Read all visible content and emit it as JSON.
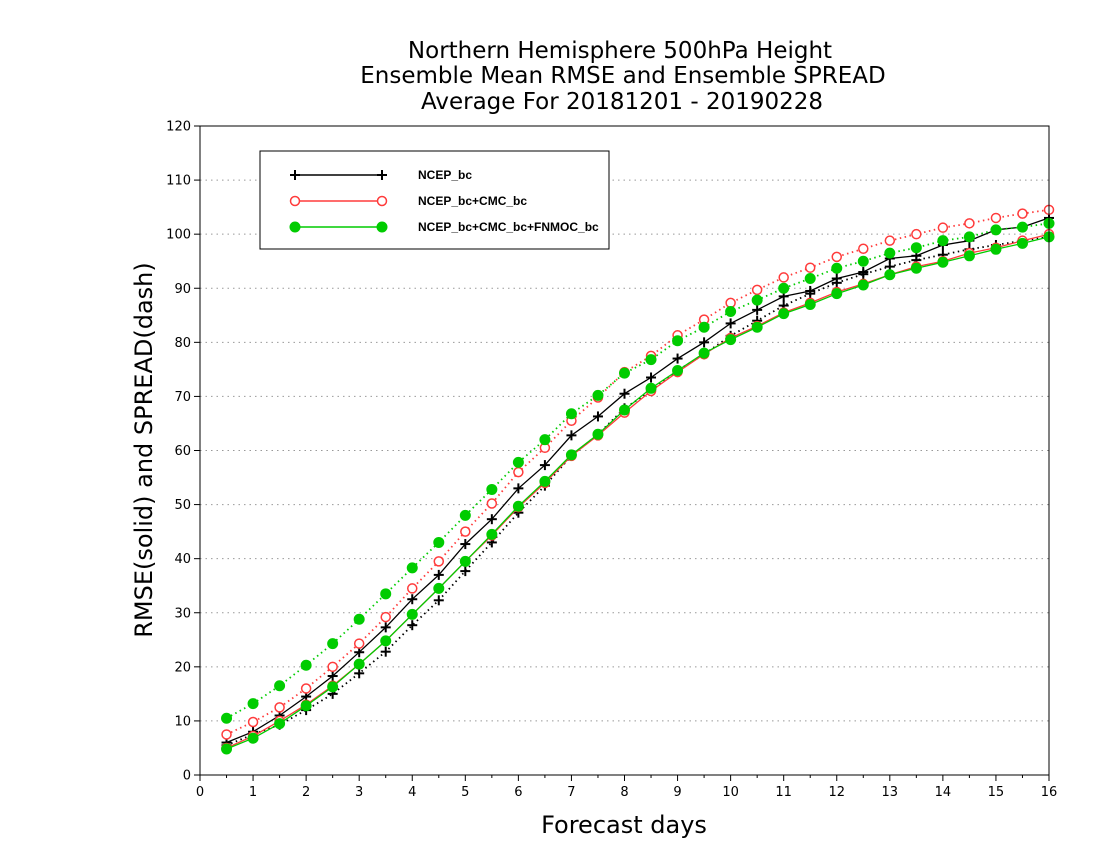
{
  "chart_data": {
    "type": "line",
    "title_lines": [
      "Northern Hemisphere 500hPa Height",
      "Ensemble Mean RMSE and Ensemble SPREAD",
      "Average For 20181201 - 20190228"
    ],
    "xlabel": "Forecast days",
    "ylabel": "RMSE(solid) and SPREAD(dash)",
    "xlim": [
      0,
      16
    ],
    "ylim": [
      0,
      120
    ],
    "x_ticks": [
      0,
      1,
      2,
      3,
      4,
      5,
      6,
      7,
      8,
      9,
      10,
      11,
      12,
      13,
      14,
      15,
      16
    ],
    "y_ticks": [
      0,
      10,
      20,
      30,
      40,
      50,
      60,
      70,
      80,
      90,
      100,
      110,
      120
    ],
    "grid": "horizontal dotted",
    "legend_position": "top-left",
    "x": [
      0.5,
      1,
      1.5,
      2,
      2.5,
      3,
      3.5,
      4,
      4.5,
      5,
      5.5,
      6,
      6.5,
      7,
      7.5,
      8,
      8.5,
      9,
      9.5,
      10,
      10.5,
      11,
      11.5,
      12,
      12.5,
      13,
      13.5,
      14,
      14.5,
      15,
      15.5,
      16
    ],
    "series": [
      {
        "name": "NCEP_bc",
        "color": "#000000",
        "marker": "plus",
        "rmse": [
          6.0,
          8.0,
          11.0,
          14.5,
          18.3,
          22.7,
          27.3,
          32.5,
          37.0,
          42.7,
          47.3,
          53.0,
          57.3,
          62.8,
          66.3,
          70.5,
          73.5,
          77.0,
          80.0,
          83.5,
          86.0,
          88.5,
          89.5,
          91.8,
          93.0,
          95.5,
          96.0,
          98.0,
          98.8,
          100.8,
          101.3,
          103.0
        ],
        "spread": [
          5.5,
          7.5,
          9.3,
          12.0,
          15.0,
          18.8,
          22.8,
          27.7,
          32.3,
          37.7,
          43.0,
          48.5,
          53.5,
          59.0,
          63.0,
          67.8,
          71.0,
          74.8,
          77.8,
          81.2,
          84.0,
          86.8,
          89.0,
          91.0,
          92.6,
          94.0,
          95.2,
          96.2,
          97.2,
          98.0,
          98.8,
          99.5
        ]
      },
      {
        "name": "NCEP_bc+CMC_bc",
        "color": "#ff3b3b",
        "marker": "circle",
        "rmse": [
          5.0,
          7.2,
          10.0,
          13.0,
          16.5,
          20.5,
          24.8,
          29.7,
          34.5,
          39.5,
          44.3,
          49.5,
          54.0,
          59.0,
          62.8,
          67.0,
          71.0,
          74.5,
          77.8,
          80.8,
          83.0,
          85.5,
          87.3,
          89.3,
          90.8,
          92.5,
          94.0,
          95.0,
          96.5,
          97.5,
          98.8,
          100.0
        ],
        "spread": [
          7.5,
          9.8,
          12.5,
          16.0,
          20.0,
          24.3,
          29.2,
          34.5,
          39.5,
          45.0,
          50.2,
          56.0,
          60.5,
          65.5,
          69.8,
          74.5,
          77.5,
          81.3,
          84.2,
          87.3,
          89.7,
          92.0,
          93.8,
          95.8,
          97.3,
          98.8,
          100.0,
          101.2,
          102.0,
          103.0,
          103.8,
          104.5
        ]
      },
      {
        "name": "NCEP_bc+CMC_bc+FNMOC_bc",
        "color": "#00cc00",
        "marker": "filled-circle",
        "rmse": [
          4.8,
          6.8,
          9.5,
          12.8,
          16.3,
          20.5,
          24.8,
          29.7,
          34.5,
          39.5,
          44.5,
          49.7,
          54.3,
          59.2,
          63.0,
          67.5,
          71.5,
          74.8,
          78.0,
          80.5,
          82.8,
          85.3,
          87.0,
          89.0,
          90.6,
          92.5,
          93.7,
          94.8,
          96.0,
          97.2,
          98.3,
          99.5
        ],
        "spread": [
          10.5,
          13.2,
          16.5,
          20.3,
          24.3,
          28.8,
          33.5,
          38.3,
          43.0,
          48.0,
          52.8,
          57.8,
          62.0,
          66.8,
          70.2,
          74.3,
          76.8,
          80.3,
          82.8,
          85.7,
          87.8,
          90.0,
          91.8,
          93.7,
          95.0,
          96.5,
          97.5,
          98.8,
          99.5,
          100.8,
          101.3,
          102.0
        ]
      }
    ]
  }
}
